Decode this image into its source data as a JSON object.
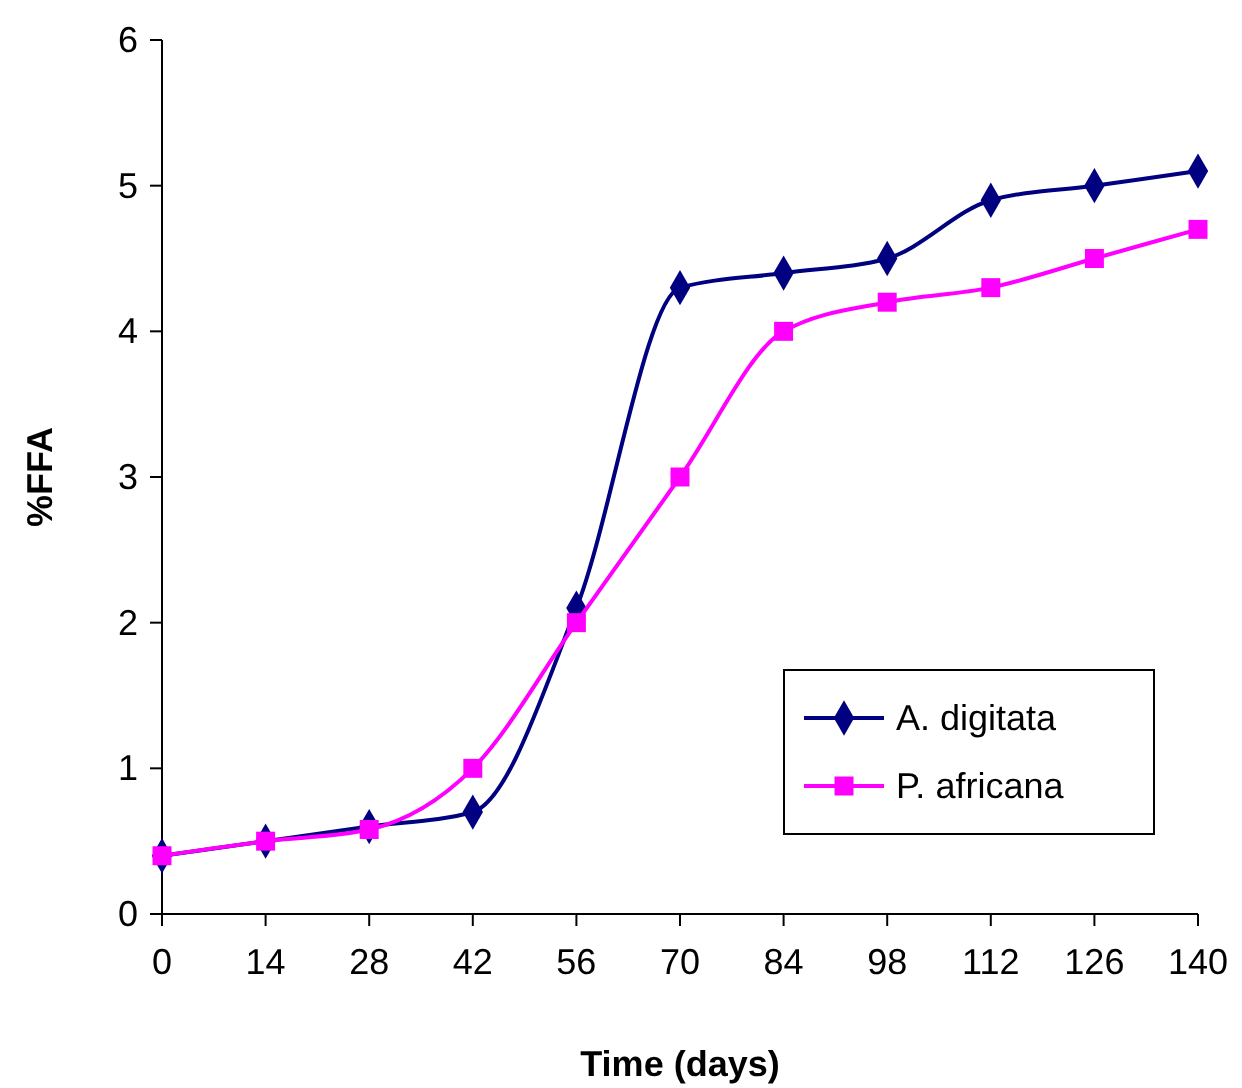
{
  "chart_data": {
    "type": "line",
    "xlabel": "Time (days)",
    "ylabel": "%FFA",
    "x": [
      0,
      14,
      28,
      42,
      56,
      70,
      84,
      98,
      112,
      126,
      140
    ],
    "xlim": [
      0,
      140
    ],
    "xticks": [
      0,
      14,
      28,
      42,
      56,
      70,
      84,
      98,
      112,
      126,
      140
    ],
    "ylim": [
      0,
      6
    ],
    "yticks": [
      0,
      1,
      2,
      3,
      4,
      5,
      6
    ],
    "grid": false,
    "legend": "bottom right",
    "series": [
      {
        "name": "A. digitata",
        "color": "#000080",
        "marker": "diamond",
        "values": [
          0.4,
          0.5,
          0.6,
          0.7,
          2.1,
          4.3,
          4.4,
          4.5,
          4.9,
          5.0,
          5.1
        ]
      },
      {
        "name": "P. africana",
        "color": "#ff00ff",
        "marker": "square",
        "values": [
          0.4,
          0.5,
          0.58,
          1.0,
          2.0,
          3.0,
          4.0,
          4.2,
          4.3,
          4.5,
          4.7
        ]
      }
    ]
  }
}
